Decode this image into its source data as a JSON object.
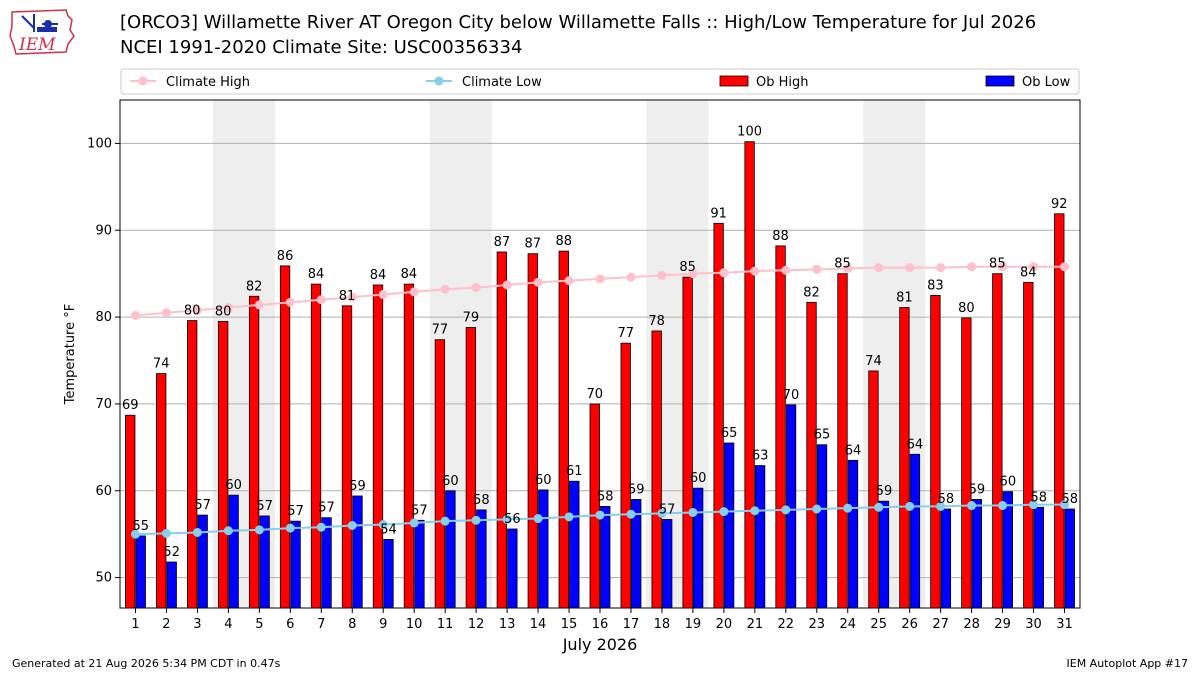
{
  "header": {
    "title_line1": "[ORCO3] Willamette River  AT Oregon City below Willamette Falls :: High/Low Temperature for Jul 2026",
    "title_line2": "NCEI 1991-2020 Climate Site: USC00356334"
  },
  "logo": {
    "text": "IEM"
  },
  "footer": {
    "left": "Generated at 21 Aug 2026 5:34 PM CDT in 0.47s",
    "right": "IEM Autoplot App #17"
  },
  "colors": {
    "ob_high": "#ff0000",
    "ob_low": "#0000ff",
    "climate_high": "#ffc0cb",
    "climate_low": "#87ceeb",
    "weekend_band": "#eeeeee",
    "grid": "#b0b0b0"
  },
  "chart_data": {
    "type": "bar",
    "xlabel": "July 2026",
    "ylabel": "Temperature °F",
    "ylim": [
      46.5,
      105
    ],
    "yticks": [
      50,
      60,
      70,
      80,
      90,
      100
    ],
    "grid": true,
    "legend_placement": "top",
    "categories": [
      "1",
      "2",
      "3",
      "4",
      "5",
      "6",
      "7",
      "8",
      "9",
      "10",
      "11",
      "12",
      "13",
      "14",
      "15",
      "16",
      "17",
      "18",
      "19",
      "20",
      "21",
      "22",
      "23",
      "24",
      "25",
      "26",
      "27",
      "28",
      "29",
      "30",
      "31"
    ],
    "shaded_days": [
      "4",
      "5",
      "11",
      "12",
      "18",
      "19",
      "25",
      "26"
    ],
    "series": [
      {
        "name": "Ob High",
        "kind": "bar",
        "values": [
          69,
          74,
          80,
          80,
          82,
          86,
          84,
          81,
          84,
          84,
          77,
          79,
          87,
          87,
          88,
          70,
          77,
          78,
          85,
          91,
          100,
          88,
          82,
          85,
          74,
          81,
          83,
          80,
          85,
          84,
          92
        ],
        "plotted": [
          68.7,
          73.5,
          79.6,
          79.5,
          82.4,
          85.9,
          83.8,
          81.3,
          83.7,
          83.8,
          77.4,
          78.8,
          87.5,
          87.3,
          87.6,
          70.0,
          77.0,
          78.4,
          84.6,
          90.8,
          100.2,
          88.2,
          81.7,
          85.0,
          73.8,
          81.1,
          82.5,
          79.9,
          85.0,
          84.0,
          91.9
        ]
      },
      {
        "name": "Ob Low",
        "kind": "bar",
        "values": [
          55,
          52,
          57,
          60,
          57,
          57,
          57,
          59,
          54,
          57,
          60,
          58,
          56,
          60,
          61,
          58,
          59,
          57,
          60,
          65,
          63,
          70,
          65,
          64,
          59,
          64,
          58,
          59,
          60,
          58,
          58
        ],
        "plotted": [
          54.8,
          51.8,
          57.2,
          59.5,
          57.1,
          56.5,
          56.9,
          59.4,
          54.4,
          56.6,
          60.0,
          57.8,
          55.6,
          60.1,
          61.1,
          58.2,
          59.0,
          56.7,
          60.3,
          65.5,
          62.9,
          69.9,
          65.3,
          63.5,
          58.8,
          64.2,
          57.9,
          59.0,
          59.9,
          58.1,
          57.9
        ]
      },
      {
        "name": "Climate High",
        "kind": "line",
        "values": [
          80.2,
          80.5,
          80.8,
          81.1,
          81.4,
          81.7,
          82.0,
          82.3,
          82.6,
          82.9,
          83.2,
          83.4,
          83.7,
          84.0,
          84.2,
          84.4,
          84.6,
          84.8,
          85.0,
          85.1,
          85.3,
          85.4,
          85.5,
          85.6,
          85.7,
          85.7,
          85.7,
          85.8,
          85.8,
          85.8,
          85.8
        ]
      },
      {
        "name": "Climate Low",
        "kind": "line",
        "values": [
          55.0,
          55.1,
          55.2,
          55.4,
          55.5,
          55.7,
          55.8,
          56.0,
          56.1,
          56.3,
          56.5,
          56.6,
          56.7,
          56.8,
          57.0,
          57.2,
          57.3,
          57.4,
          57.5,
          57.6,
          57.7,
          57.8,
          57.9,
          58.0,
          58.1,
          58.2,
          58.2,
          58.3,
          58.3,
          58.4,
          58.4
        ]
      }
    ]
  }
}
